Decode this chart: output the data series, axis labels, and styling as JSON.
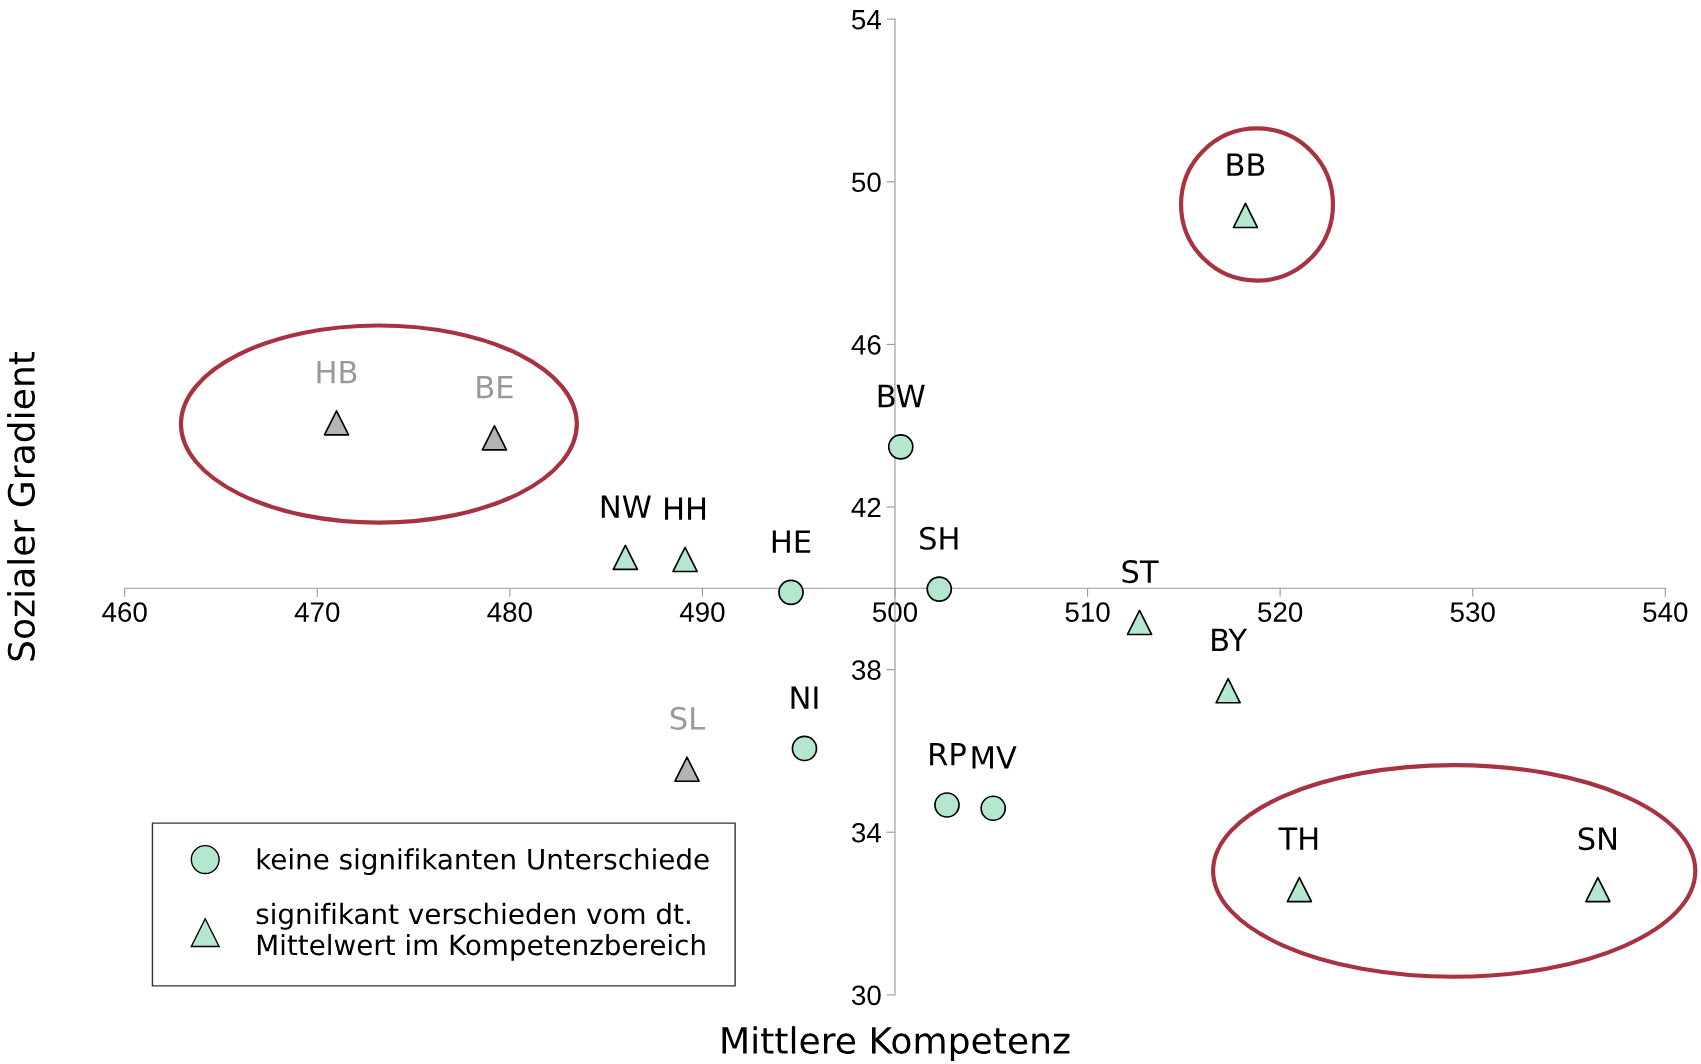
{
  "chart_data": {
    "type": "scatter",
    "xlabel": "Mittlere Kompetenz",
    "ylabel": "Sozialer Gradient",
    "xlim": [
      460,
      540
    ],
    "xticks": [
      460,
      470,
      480,
      490,
      500,
      510,
      520,
      530,
      540
    ],
    "ylim": [
      30,
      54
    ],
    "yticks": [
      30,
      34,
      38,
      42,
      46,
      50,
      54
    ],
    "grid": false,
    "legend": "bottom left",
    "series": [
      {
        "name": "keine signifikanten Unterschiede",
        "marker": "circle",
        "x": [
          500.3,
          494.6,
          502.3,
          495.3,
          502.7,
          505.1
        ],
        "values": [
          43.48,
          39.9,
          39.98,
          36.06,
          34.67,
          34.59
        ],
        "colors": [
          "#b3e8cf",
          "#b3e8cf",
          "#b3e8cf",
          "#b3e8cf",
          "#b3e8cf",
          "#b3e8cf"
        ]
      },
      {
        "name": "signifikant verschieden vom dt. Mittelwert im Kompetenzbereich",
        "marker": "triangle",
        "x": [
          518.2,
          471.0,
          479.2,
          486.0,
          489.1,
          512.7,
          517.3,
          489.2,
          521.0,
          536.5
        ],
        "values": [
          49.17,
          44.07,
          43.7,
          40.76,
          40.71,
          39.16,
          37.48,
          35.55,
          32.59,
          32.59
        ],
        "colors": [
          "#b3e8cf",
          "#b4b4b4",
          "#b4b4b4",
          "#b3e8cf",
          "#b3e8cf",
          "#b3e8cf",
          "#b3e8cf",
          "#b4b4b4",
          "#b3e8cf",
          "#b3e8cf"
        ]
      }
    ],
    "annotations": [
      {
        "text": "BW",
        "x": 500.3,
        "y": 43.48
      },
      {
        "text": "HE",
        "x": 494.6,
        "y": 39.9
      },
      {
        "text": "SH",
        "x": 502.3,
        "y": 39.98
      },
      {
        "text": "NI",
        "x": 495.3,
        "y": 36.06
      },
      {
        "text": "RP",
        "x": 502.7,
        "y": 34.67
      },
      {
        "text": "MV",
        "x": 505.1,
        "y": 34.59
      },
      {
        "text": "BB",
        "x": 518.2,
        "y": 49.17
      },
      {
        "text": "HB",
        "x": 471.0,
        "y": 44.07
      },
      {
        "text": "BE",
        "x": 479.2,
        "y": 43.7
      },
      {
        "text": "NW",
        "x": 486.0,
        "y": 40.76
      },
      {
        "text": "HH",
        "x": 489.1,
        "y": 40.71
      },
      {
        "text": "ST",
        "x": 512.7,
        "y": 39.16
      },
      {
        "text": "BY",
        "x": 517.3,
        "y": 37.48
      },
      {
        "text": "SL",
        "x": 489.2,
        "y": 35.55
      },
      {
        "text": "TH",
        "x": 521.0,
        "y": 32.59
      },
      {
        "text": "SN",
        "x": 536.5,
        "y": 32.59
      }
    ]
  }
}
